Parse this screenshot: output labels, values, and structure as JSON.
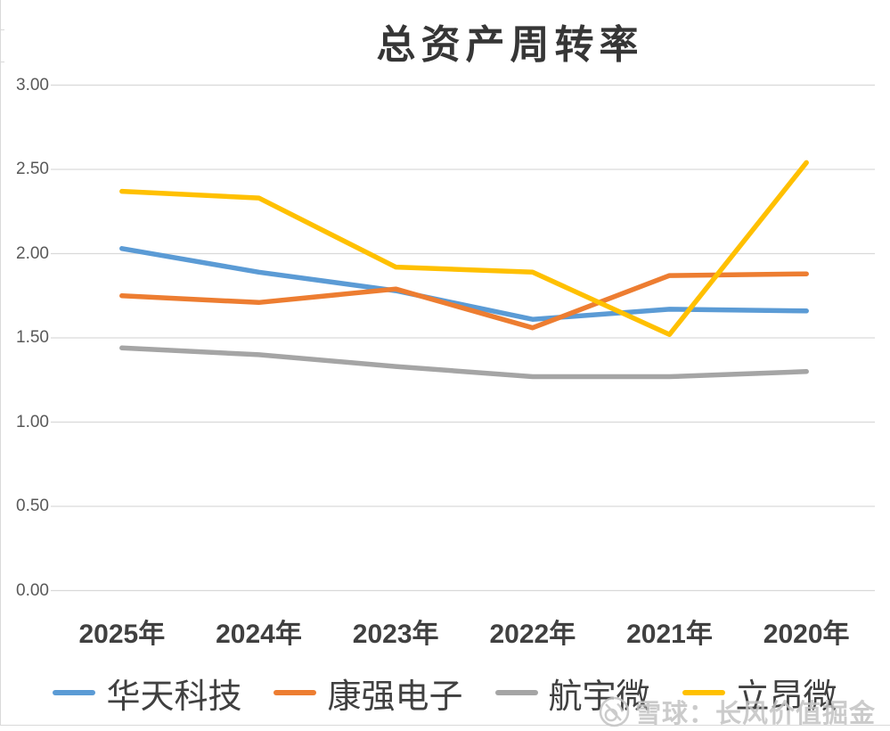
{
  "chart_data": {
    "type": "line",
    "title": "总资产周转率",
    "categories": [
      "2025年",
      "2024年",
      "2023年",
      "2022年",
      "2021年",
      "2020年"
    ],
    "series": [
      {
        "name": "华天科技",
        "color": "#5B9BD5",
        "values": [
          2.03,
          1.89,
          1.78,
          1.61,
          1.67,
          1.66
        ]
      },
      {
        "name": "康强电子",
        "color": "#ED7D31",
        "values": [
          1.75,
          1.71,
          1.79,
          1.56,
          1.87,
          1.88
        ]
      },
      {
        "name": "航宇微",
        "color": "#A5A5A5",
        "values": [
          1.44,
          1.4,
          1.33,
          1.27,
          1.27,
          1.3
        ]
      },
      {
        "name": "立昂微",
        "color": "#FFC000",
        "values": [
          2.37,
          2.33,
          1.92,
          1.89,
          1.52,
          2.54
        ]
      }
    ],
    "xlabel": "",
    "ylabel": "",
    "ylim": [
      0,
      3.0
    ],
    "ytick_labels": [
      "0.00",
      "0.50",
      "1.00",
      "1.50",
      "2.00",
      "2.50",
      "3.00"
    ],
    "grid": true,
    "legend_position": "bottom"
  },
  "watermark": {
    "text": "雪球：长风价值掘金",
    "logo_icon": "xueqiu-snowball-logo"
  },
  "colors": {
    "background": "#FFFFFF",
    "grid": "#D9D9D9",
    "axis_text": "#595959",
    "category_text": "#404040",
    "legend_text": "#404040",
    "title_text": "#363636",
    "watermark": "#C3C3C3",
    "sheet_border": "#D9D9D9"
  }
}
